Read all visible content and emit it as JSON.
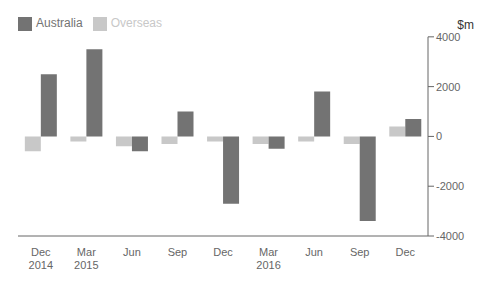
{
  "chart_data": {
    "type": "bar",
    "categories": [
      "Dec\n2014",
      "Mar\n2015",
      "Jun",
      "Sep",
      "Dec",
      "Mar\n2016",
      "Jun",
      "Sep",
      "Dec"
    ],
    "series": [
      {
        "name": "Overseas",
        "color": "#c8c8c8",
        "values": [
          -600,
          -200,
          -400,
          -300,
          -200,
          -300,
          -200,
          -300,
          400
        ]
      },
      {
        "name": "Australia",
        "color": "#737373",
        "values": [
          2500,
          3500,
          -600,
          1000,
          -2700,
          -500,
          1800,
          -3400,
          700
        ]
      }
    ],
    "ylim": [
      -4000,
      4000
    ],
    "yticks": [
      -4000,
      -2000,
      0,
      2000,
      4000
    ],
    "ylabel": "$m",
    "grid": false,
    "legend": "upper left"
  }
}
